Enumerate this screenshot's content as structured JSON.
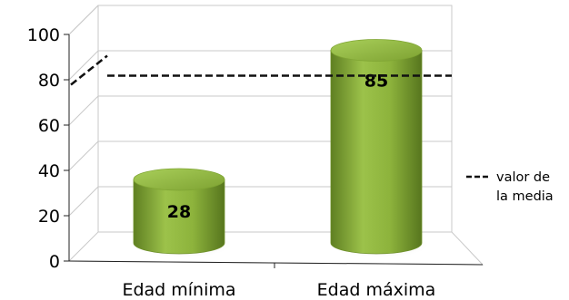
{
  "chart_data": {
    "type": "bar",
    "categories": [
      "Edad mínima",
      "Edad máxima"
    ],
    "values": [
      28,
      85
    ],
    "data_labels": [
      "28",
      "85"
    ],
    "ylim": [
      0,
      100
    ],
    "yticks": [
      "0",
      "20",
      "40",
      "60",
      "80",
      "100"
    ],
    "mean_line": {
      "value": 77,
      "style": "dashed"
    },
    "legend": {
      "position": "right",
      "label_line1": "valor de",
      "label_line2": "la media"
    },
    "bar_shape": "cylinder",
    "bar_color": "#8db33c",
    "grid": true,
    "title": "",
    "xlabel": "",
    "ylabel": ""
  }
}
